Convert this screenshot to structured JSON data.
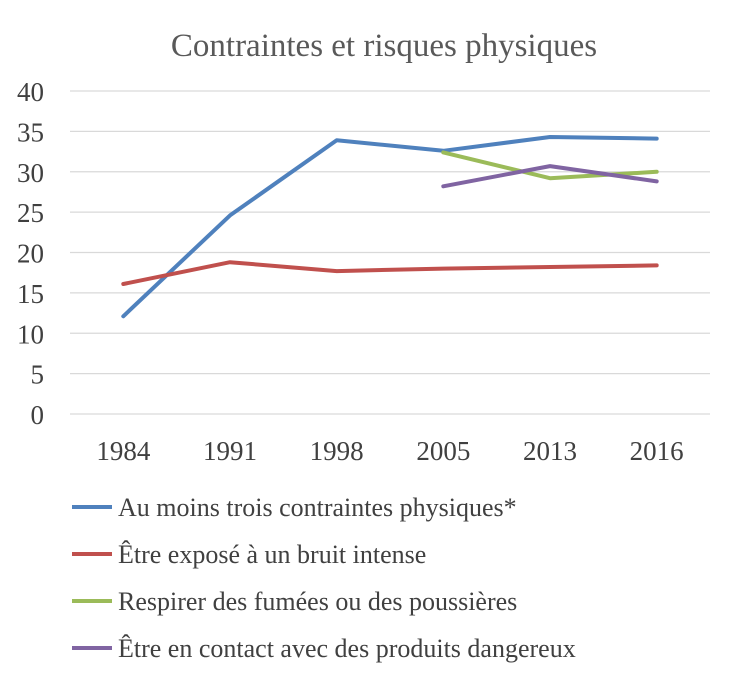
{
  "chart_data": {
    "type": "line",
    "title": "Contraintes et risques physiques",
    "xlabel": "",
    "ylabel": "",
    "categories": [
      "1984",
      "1991",
      "1998",
      "2005",
      "2013",
      "2016"
    ],
    "y_ticks": [
      "0",
      "5",
      "10",
      "15",
      "20",
      "25",
      "30",
      "35",
      "40"
    ],
    "ylim": [
      0,
      40
    ],
    "grid": true,
    "legend_position": "bottom",
    "series": [
      {
        "name": "Au moins trois contraintes physiques*",
        "color": "#4f81bd",
        "values": [
          12.1,
          24.6,
          33.9,
          32.6,
          34.3,
          34.1
        ]
      },
      {
        "name": "Être exposé à un bruit intense",
        "color": "#c0504d",
        "values": [
          16.1,
          18.8,
          17.7,
          18.0,
          18.2,
          18.4
        ]
      },
      {
        "name": "Respirer des fumées ou des poussières",
        "color": "#9bbb59",
        "values": [
          null,
          null,
          null,
          32.4,
          29.2,
          30.0
        ]
      },
      {
        "name": "Être en contact avec des produits dangereux",
        "color": "#8064a2",
        "values": [
          null,
          null,
          null,
          28.2,
          30.7,
          28.8
        ]
      }
    ]
  }
}
